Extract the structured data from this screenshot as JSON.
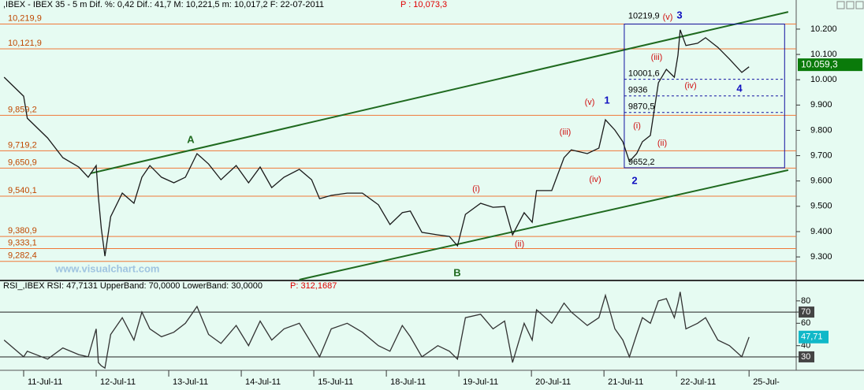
{
  "chart_data": [
    {
      "type": "line",
      "title": ",IBEX - IBEX 35 - 5 m Dif. %: 0,42 Dif.: 41,7 M: 10,221,5 m: 10,017,2 F: 22-07-2011",
      "title_price": "P : 10,073,3",
      "watermark": "www.visualchart.com",
      "xlim": [
        -0.326,
        10.65
      ],
      "xticks": [
        {
          "value": 0,
          "label": "11-Jul-11"
        },
        {
          "value": 1,
          "label": "12-Jul-11"
        },
        {
          "value": 2,
          "label": "13-Jul-11"
        },
        {
          "value": 3,
          "label": "14-Jul-11"
        },
        {
          "value": 4,
          "label": "15-Jul-11"
        },
        {
          "value": 5,
          "label": "18-Jul-11"
        },
        {
          "value": 6,
          "label": "19-Jul-11"
        },
        {
          "value": 7,
          "label": "20-Jul-11"
        },
        {
          "value": 8,
          "label": "21-Jul-11"
        },
        {
          "value": 9,
          "label": "22-Jul-11"
        },
        {
          "value": 10,
          "label": "25-Jul-"
        }
      ],
      "ylim": [
        9210,
        10315
      ],
      "yticks": [
        {
          "value": 10200,
          "label": "10.200"
        },
        {
          "value": 10100,
          "label": "10.100"
        },
        {
          "value": 10000,
          "label": "10.000"
        },
        {
          "value": 9900,
          "label": "9.900"
        },
        {
          "value": 9800,
          "label": "9.800"
        },
        {
          "value": 9700,
          "label": "9.700"
        },
        {
          "value": 9600,
          "label": "9.600"
        },
        {
          "value": 9500,
          "label": "9.500"
        },
        {
          "value": 9400,
          "label": "9.400"
        },
        {
          "value": 9300,
          "label": "9.300"
        }
      ],
      "series": [
        {
          "color": "#1a1a1a",
          "x": [
            -0.27,
            0,
            0.05,
            0.33,
            0.54,
            0.76,
            0.89,
            1.0,
            1.03,
            1.07,
            1.12,
            1.2,
            1.36,
            1.52,
            1.63,
            1.74,
            1.9,
            2.07,
            2.23,
            2.39,
            2.55,
            2.72,
            2.93,
            3.1,
            3.26,
            3.42,
            3.59,
            3.8,
            3.97,
            4.08,
            4.24,
            4.46,
            4.67,
            4.89,
            5.05,
            5.22,
            5.33,
            5.49,
            5.71,
            5.87,
            5.98,
            6.09,
            6.3,
            6.47,
            6.63,
            6.74,
            6.9,
            7.01,
            7.07,
            7.28,
            7.45,
            7.55,
            7.77,
            7.93,
            8.02,
            8.15,
            8.26,
            8.35,
            8.45,
            8.53,
            8.64,
            8.75,
            8.86,
            8.97,
            9.02,
            9.05,
            9.13,
            9.29,
            9.4,
            9.57,
            9.73,
            9.9,
            10.0
          ],
          "values": [
            10010,
            9935,
            9848,
            9770,
            9692,
            9655,
            9615,
            9661,
            9537,
            9412,
            9303,
            9459,
            9552,
            9512,
            9615,
            9661,
            9615,
            9593,
            9615,
            9708,
            9667,
            9605,
            9661,
            9593,
            9655,
            9574,
            9615,
            9646,
            9605,
            9530,
            9543,
            9552,
            9552,
            9506,
            9428,
            9475,
            9481,
            9397,
            9387,
            9381,
            9344,
            9468,
            9512,
            9496,
            9499,
            9387,
            9475,
            9437,
            9562,
            9562,
            9692,
            9723,
            9708,
            9730,
            9842,
            9801,
            9755,
            9677,
            9708,
            9755,
            9780,
            9988,
            10041,
            10010,
            10097,
            10197,
            10135,
            10144,
            10166,
            10128,
            10082,
            10029,
            10051
          ]
        }
      ],
      "levels_color": "#f07838",
      "levels": [
        {
          "value": 10219.9,
          "label": "10,219,9"
        },
        {
          "value": 10121.9,
          "label": "10,121,9"
        },
        {
          "value": 9859.2,
          "label": "9,859,2"
        },
        {
          "value": 9719.2,
          "label": "9,719,2"
        },
        {
          "value": 9650.9,
          "label": "9,650,9"
        },
        {
          "value": 9540.1,
          "label": "9,540,1"
        },
        {
          "value": 9380.9,
          "label": "9,380,9"
        },
        {
          "value": 9333.1,
          "label": "9,333,1"
        },
        {
          "value": 9282.4,
          "label": "9,282,4"
        }
      ],
      "trendline_color": "#1f6a1f",
      "trendlines": [
        {
          "x": [
            0.92,
            10.54
          ],
          "values": [
            9630,
            10268
          ]
        },
        {
          "x": [
            3.8,
            10.54
          ],
          "values": [
            9210,
            9643
          ]
        }
      ],
      "box": {
        "x": [
          8.28,
          10.49
        ],
        "levels": [
          {
            "value": 10219.9,
            "label": "10219,9"
          },
          {
            "value": 10001.6,
            "label": "10001,6"
          },
          {
            "value": 9936,
            "label": "9936"
          },
          {
            "value": 9870.5,
            "label": "9870,5"
          },
          {
            "value": 9652.2,
            "label": "9652,2"
          }
        ]
      },
      "annotations": [
        {
          "text": "A",
          "color": "#1f6a1f"
        },
        {
          "text": "B",
          "color": "#1f6a1f"
        },
        {
          "text": "(i)",
          "color": "#d01010"
        },
        {
          "text": "(ii)",
          "color": "#d01010"
        },
        {
          "text": "(iii)",
          "color": "#d01010"
        },
        {
          "text": "(iv)",
          "color": "#d01010"
        },
        {
          "text": "(v)",
          "color": "#d01010"
        },
        {
          "text": "1",
          "color": "#1010c0"
        },
        {
          "text": "2",
          "color": "#1010c0"
        },
        {
          "text": "(i)",
          "color": "#d01010"
        },
        {
          "text": "(ii)",
          "color": "#d01010"
        },
        {
          "text": "(iii)",
          "color": "#d01010"
        },
        {
          "text": "(iv)",
          "color": "#d01010"
        },
        {
          "text": "(v)",
          "color": "#d01010"
        },
        {
          "text": "3",
          "color": "#1010c0"
        },
        {
          "text": "4",
          "color": "#1010c0"
        }
      ],
      "last_value": {
        "value": 10059.3,
        "label": "10.059,3"
      }
    },
    {
      "type": "line",
      "title": "RSI_,IBEX RSI: 47,7131 UpperBand: 70,0000 LowerBand: 30,0000",
      "title_price": "P: 312,1687",
      "xlim": [
        -0.326,
        10.65
      ],
      "ylim": [
        18,
        97.5
      ],
      "yticks": [
        80,
        70,
        60,
        40,
        30
      ],
      "bands": [
        70,
        30
      ],
      "series": [
        {
          "color": "#333333",
          "x": [
            -0.27,
            0,
            0.05,
            0.33,
            0.54,
            0.76,
            0.89,
            1.0,
            1.03,
            1.07,
            1.12,
            1.2,
            1.36,
            1.52,
            1.63,
            1.74,
            1.9,
            2.07,
            2.23,
            2.39,
            2.55,
            2.72,
            2.93,
            3.1,
            3.26,
            3.42,
            3.59,
            3.8,
            3.97,
            4.08,
            4.24,
            4.46,
            4.67,
            4.89,
            5.05,
            5.22,
            5.33,
            5.49,
            5.71,
            5.87,
            5.98,
            6.09,
            6.3,
            6.47,
            6.63,
            6.74,
            6.9,
            7.01,
            7.07,
            7.28,
            7.45,
            7.55,
            7.77,
            7.93,
            8.02,
            8.15,
            8.26,
            8.35,
            8.45,
            8.53,
            8.64,
            8.75,
            8.86,
            8.97,
            9.02,
            9.05,
            9.13,
            9.29,
            9.4,
            9.57,
            9.73,
            9.9,
            10.0
          ],
          "values": [
            45,
            30,
            35,
            28,
            38,
            32,
            30,
            55,
            25,
            22,
            20,
            50,
            65,
            45,
            70,
            55,
            48,
            52,
            60,
            75,
            50,
            42,
            58,
            40,
            62,
            45,
            55,
            60,
            42,
            30,
            55,
            60,
            52,
            40,
            35,
            58,
            48,
            30,
            40,
            35,
            28,
            65,
            68,
            55,
            62,
            25,
            60,
            45,
            72,
            60,
            78,
            70,
            58,
            65,
            85,
            55,
            45,
            30,
            50,
            65,
            60,
            80,
            82,
            65,
            78,
            88,
            55,
            60,
            65,
            45,
            40,
            30,
            47.71
          ]
        }
      ],
      "last_value": {
        "value": 47.71,
        "label": "47,71"
      }
    }
  ]
}
